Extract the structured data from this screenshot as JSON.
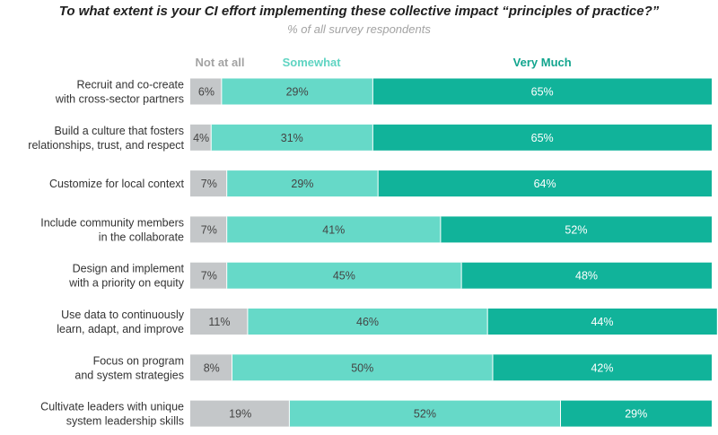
{
  "chart_data": {
    "type": "bar",
    "orientation": "horizontal",
    "stacked": true,
    "title": "To what extent is your CI effort implementing these collective impact “principles of practice?”",
    "subtitle": "% of all survey respondents",
    "legend_placement": "top",
    "categories": [
      [
        "Recruit and co-create",
        "with cross-sector partners"
      ],
      [
        "Build a culture that fosters",
        "relationships, trust, and respect"
      ],
      [
        "Customize for local context"
      ],
      [
        "Include community members",
        "in the collaborate"
      ],
      [
        "Design and implement",
        "with a priority on equity"
      ],
      [
        "Use data to continuously",
        "learn, adapt, and improve"
      ],
      [
        "Focus on program",
        "and system strategies"
      ],
      [
        "Cultivate leaders with unique",
        "system leadership skills"
      ]
    ],
    "series": [
      {
        "name": "Not at all",
        "color": "#c4c7c9",
        "label_color": "#444444",
        "values": [
          6,
          4,
          7,
          7,
          7,
          11,
          8,
          19
        ]
      },
      {
        "name": "Somewhat",
        "color": "#66d9c8",
        "label_color": "#444444",
        "values": [
          29,
          31,
          29,
          41,
          45,
          46,
          50,
          52
        ]
      },
      {
        "name": "Very Much",
        "color": "#11b39a",
        "label_color": "#ffffff",
        "values": [
          65,
          65,
          64,
          52,
          48,
          44,
          42,
          29
        ]
      }
    ],
    "value_suffix": "%",
    "grid": false
  },
  "colors": {
    "legend_not_at_all": "#a3a3a3",
    "legend_somewhat": "#5fd4c2",
    "legend_very_much": "#12a58e"
  }
}
